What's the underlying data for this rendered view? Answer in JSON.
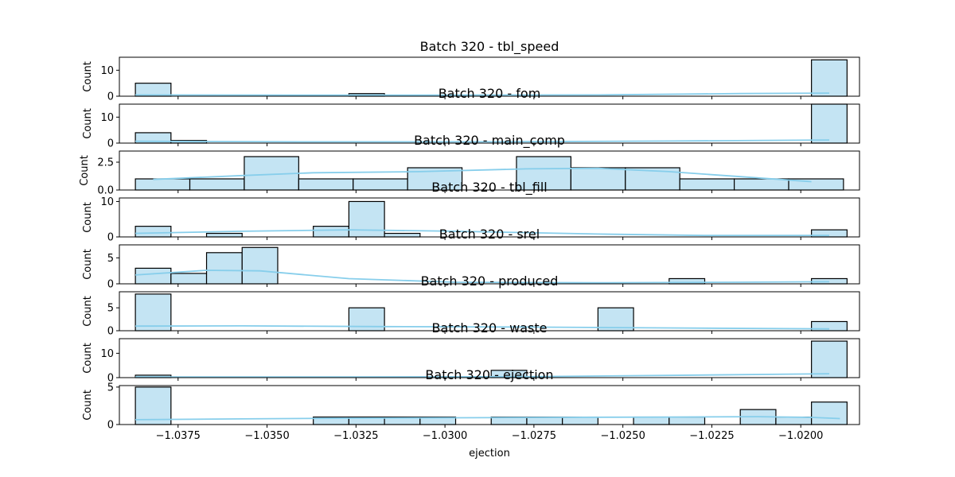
{
  "chart_data": {
    "type": "histogram",
    "kde_color": "#87CEEB",
    "bar_fill": "#c4e4f3",
    "bar_edge": "#000000",
    "shared_xlim": [
      -1.03915,
      -1.01835
    ],
    "xlabel": "ejection",
    "x_ticks": [
      "−1.0375",
      "−1.0350",
      "−1.0325",
      "−1.0300",
      "−1.0275",
      "−1.0250",
      "−1.0225",
      "−1.0200"
    ],
    "x_tick_values": [
      -1.0375,
      -1.035,
      -1.0325,
      -1.03,
      -1.0275,
      -1.025,
      -1.0225,
      -1.02
    ],
    "panels": [
      {
        "title": "Batch 320 - tbl_speed",
        "ylabel": "Count",
        "ylim": [
          0,
          15
        ],
        "y_ticks": [
          {
            "v": 0,
            "t": "0"
          },
          {
            "v": 10,
            "t": "10"
          }
        ],
        "xlim": [
          -1.03915,
          -1.01835
        ],
        "bins": [
          [
            -1.0387,
            -1.0377,
            5
          ],
          [
            -1.0327,
            -1.0317,
            1
          ],
          [
            -1.0197,
            -1.0187,
            14
          ]
        ],
        "kde": [
          [
            -1.0387,
            0.5
          ],
          [
            -1.0327,
            0.4
          ],
          [
            -1.0257,
            0.5
          ],
          [
            -1.0217,
            1.0
          ],
          [
            -1.0192,
            1.2
          ]
        ],
        "x_ticks": []
      },
      {
        "title": "Batch 320 - fom",
        "ylabel": "Count",
        "ylim": [
          0,
          15
        ],
        "y_ticks": [
          {
            "v": 0,
            "t": "0"
          },
          {
            "v": 10,
            "t": "10"
          }
        ],
        "xlim": [
          -1.03915,
          -1.01835
        ],
        "bins": [
          [
            -1.0387,
            -1.0377,
            4
          ],
          [
            -1.0377,
            -1.0367,
            1
          ],
          [
            -1.0197,
            -1.0187,
            15
          ]
        ],
        "kde": [
          [
            -1.0387,
            0.7
          ],
          [
            -1.0337,
            0.5
          ],
          [
            -1.0287,
            0.5
          ],
          [
            -1.0237,
            0.8
          ],
          [
            -1.0192,
            1.2
          ]
        ],
        "x_ticks": []
      },
      {
        "title": "Batch 320 - main_comp",
        "ylabel": "Count",
        "ylim": [
          0,
          3.5
        ],
        "y_ticks": [
          {
            "v": 0,
            "t": "0.0"
          },
          {
            "v": 2.5,
            "t": "2.5"
          }
        ],
        "xlim": [
          -1.03915,
          -1.01835
        ],
        "bins": [
          [
            -1.0387,
            -1.03717,
            1
          ],
          [
            -1.03717,
            -1.03564,
            1
          ],
          [
            -1.03564,
            -1.03411,
            3
          ],
          [
            -1.03411,
            -1.03258,
            1
          ],
          [
            -1.03258,
            -1.03105,
            1
          ],
          [
            -1.03105,
            -1.02952,
            2
          ],
          [
            -1.02952,
            -1.02799,
            0
          ],
          [
            -1.02799,
            -1.02646,
            3
          ],
          [
            -1.02646,
            -1.02493,
            2
          ],
          [
            -1.02493,
            -1.0234,
            2
          ],
          [
            -1.0234,
            -1.02187,
            1
          ],
          [
            -1.02187,
            -1.02034,
            1
          ],
          [
            -1.02034,
            -1.0188,
            1
          ]
        ],
        "kde": [
          [
            -1.0382,
            0.95
          ],
          [
            -1.0357,
            1.3
          ],
          [
            -1.0337,
            1.55
          ],
          [
            -1.0307,
            1.65
          ],
          [
            -1.0277,
            1.9
          ],
          [
            -1.0257,
            1.95
          ],
          [
            -1.0237,
            1.65
          ],
          [
            -1.0217,
            1.2
          ],
          [
            -1.0197,
            0.75
          ]
        ],
        "x_ticks": []
      },
      {
        "title": "Batch 320 - tbl_fill",
        "ylabel": "Count",
        "ylim": [
          0,
          11
        ],
        "y_ticks": [
          {
            "v": 0,
            "t": "0"
          },
          {
            "v": 10,
            "t": "10"
          }
        ],
        "xlim": [
          -1.03915,
          -1.01835
        ],
        "bins": [
          [
            -1.0387,
            -1.0377,
            3
          ],
          [
            -1.0367,
            -1.0357,
            1
          ],
          [
            -1.0337,
            -1.0327,
            3
          ],
          [
            -1.0327,
            -1.0317,
            10
          ],
          [
            -1.0317,
            -1.0307,
            1
          ],
          [
            -1.0197,
            -1.0187,
            2
          ]
        ],
        "kde": [
          [
            -1.0387,
            1.0
          ],
          [
            -1.0357,
            1.6
          ],
          [
            -1.0327,
            2.0
          ],
          [
            -1.0297,
            1.6
          ],
          [
            -1.0257,
            0.8
          ],
          [
            -1.0227,
            0.4
          ],
          [
            -1.0192,
            0.4
          ]
        ],
        "x_ticks": []
      },
      {
        "title": "Batch 320 - srel",
        "ylabel": "Count",
        "ylim": [
          0,
          7.5
        ],
        "y_ticks": [
          {
            "v": 0,
            "t": "0"
          },
          {
            "v": 5,
            "t": "5"
          }
        ],
        "xlim": [
          -1.03915,
          -1.01835
        ],
        "bins": [
          [
            -1.0387,
            -1.0377,
            3
          ],
          [
            -1.0377,
            -1.0367,
            2
          ],
          [
            -1.0367,
            -1.0357,
            6
          ],
          [
            -1.0357,
            -1.0347,
            7
          ],
          [
            -1.0237,
            -1.0227,
            1
          ],
          [
            -1.0197,
            -1.0187,
            1
          ]
        ],
        "kde": [
          [
            -1.0387,
            1.7
          ],
          [
            -1.0367,
            2.6
          ],
          [
            -1.0352,
            2.5
          ],
          [
            -1.0327,
            1.0
          ],
          [
            -1.0297,
            0.3
          ],
          [
            -1.0257,
            0.2
          ],
          [
            -1.0217,
            0.3
          ],
          [
            -1.0192,
            0.4
          ]
        ],
        "x_ticks": []
      },
      {
        "title": "Batch 320 - produced",
        "ylabel": "Count",
        "ylim": [
          0,
          8.5
        ],
        "y_ticks": [
          {
            "v": 0,
            "t": "0"
          },
          {
            "v": 5,
            "t": "5"
          }
        ],
        "xlim": [
          -1.03915,
          -1.01835
        ],
        "bins": [
          [
            -1.0387,
            -1.0377,
            8
          ],
          [
            -1.0327,
            -1.0317,
            5
          ],
          [
            -1.0257,
            -1.0247,
            5
          ],
          [
            -1.0197,
            -1.0187,
            2
          ]
        ],
        "kde": [
          [
            -1.0387,
            1.0
          ],
          [
            -1.0357,
            1.05
          ],
          [
            -1.0317,
            0.9
          ],
          [
            -1.0277,
            0.8
          ],
          [
            -1.0237,
            0.6
          ],
          [
            -1.0192,
            0.4
          ]
        ],
        "x_ticks": []
      },
      {
        "title": "Batch 320 - waste",
        "ylabel": "Count",
        "ylim": [
          0,
          16
        ],
        "y_ticks": [
          {
            "v": 0,
            "t": "0"
          },
          {
            "v": 10,
            "t": "10"
          }
        ],
        "xlim": [
          -1.03915,
          -1.01835
        ],
        "bins": [
          [
            -1.0387,
            -1.0377,
            1
          ],
          [
            -1.0287,
            -1.0277,
            3
          ],
          [
            -1.0197,
            -1.0187,
            15
          ]
        ],
        "kde": [
          [
            -1.0387,
            0.3
          ],
          [
            -1.0327,
            0.25
          ],
          [
            -1.0277,
            0.4
          ],
          [
            -1.0237,
            0.9
          ],
          [
            -1.0192,
            1.6
          ]
        ],
        "x_ticks": []
      },
      {
        "title": "Batch 320 - ejection",
        "ylabel": "Count",
        "ylim": [
          0,
          5.2
        ],
        "y_ticks": [
          {
            "v": 0,
            "t": "0"
          },
          {
            "v": 5,
            "t": "5"
          }
        ],
        "xlim": [
          -1.03915,
          -1.01835
        ],
        "bins": [
          [
            -1.0387,
            -1.0377,
            5
          ],
          [
            -1.0337,
            -1.0327,
            1
          ],
          [
            -1.0327,
            -1.0317,
            1
          ],
          [
            -1.0317,
            -1.0307,
            1
          ],
          [
            -1.0307,
            -1.0297,
            1
          ],
          [
            -1.0287,
            -1.0277,
            1
          ],
          [
            -1.0277,
            -1.0267,
            1
          ],
          [
            -1.0267,
            -1.0257,
            1
          ],
          [
            -1.0247,
            -1.0237,
            1
          ],
          [
            -1.0237,
            -1.0227,
            1
          ],
          [
            -1.0217,
            -1.0207,
            2
          ],
          [
            -1.0207,
            -1.0197,
            1
          ],
          [
            -1.0197,
            -1.0187,
            3
          ]
        ],
        "kde": [
          [
            -1.0387,
            0.65
          ],
          [
            -1.0357,
            0.75
          ],
          [
            -1.0327,
            0.85
          ],
          [
            -1.0297,
            0.9
          ],
          [
            -1.0267,
            0.95
          ],
          [
            -1.0237,
            1.0
          ],
          [
            -1.0212,
            1.05
          ],
          [
            -1.0197,
            0.95
          ],
          [
            -1.0189,
            0.8
          ]
        ],
        "x_ticks": [
          "−1.0375",
          "−1.0350",
          "−1.0325",
          "−1.0300",
          "−1.0275",
          "−1.0250",
          "−1.0225",
          "−1.0200"
        ]
      }
    ]
  }
}
